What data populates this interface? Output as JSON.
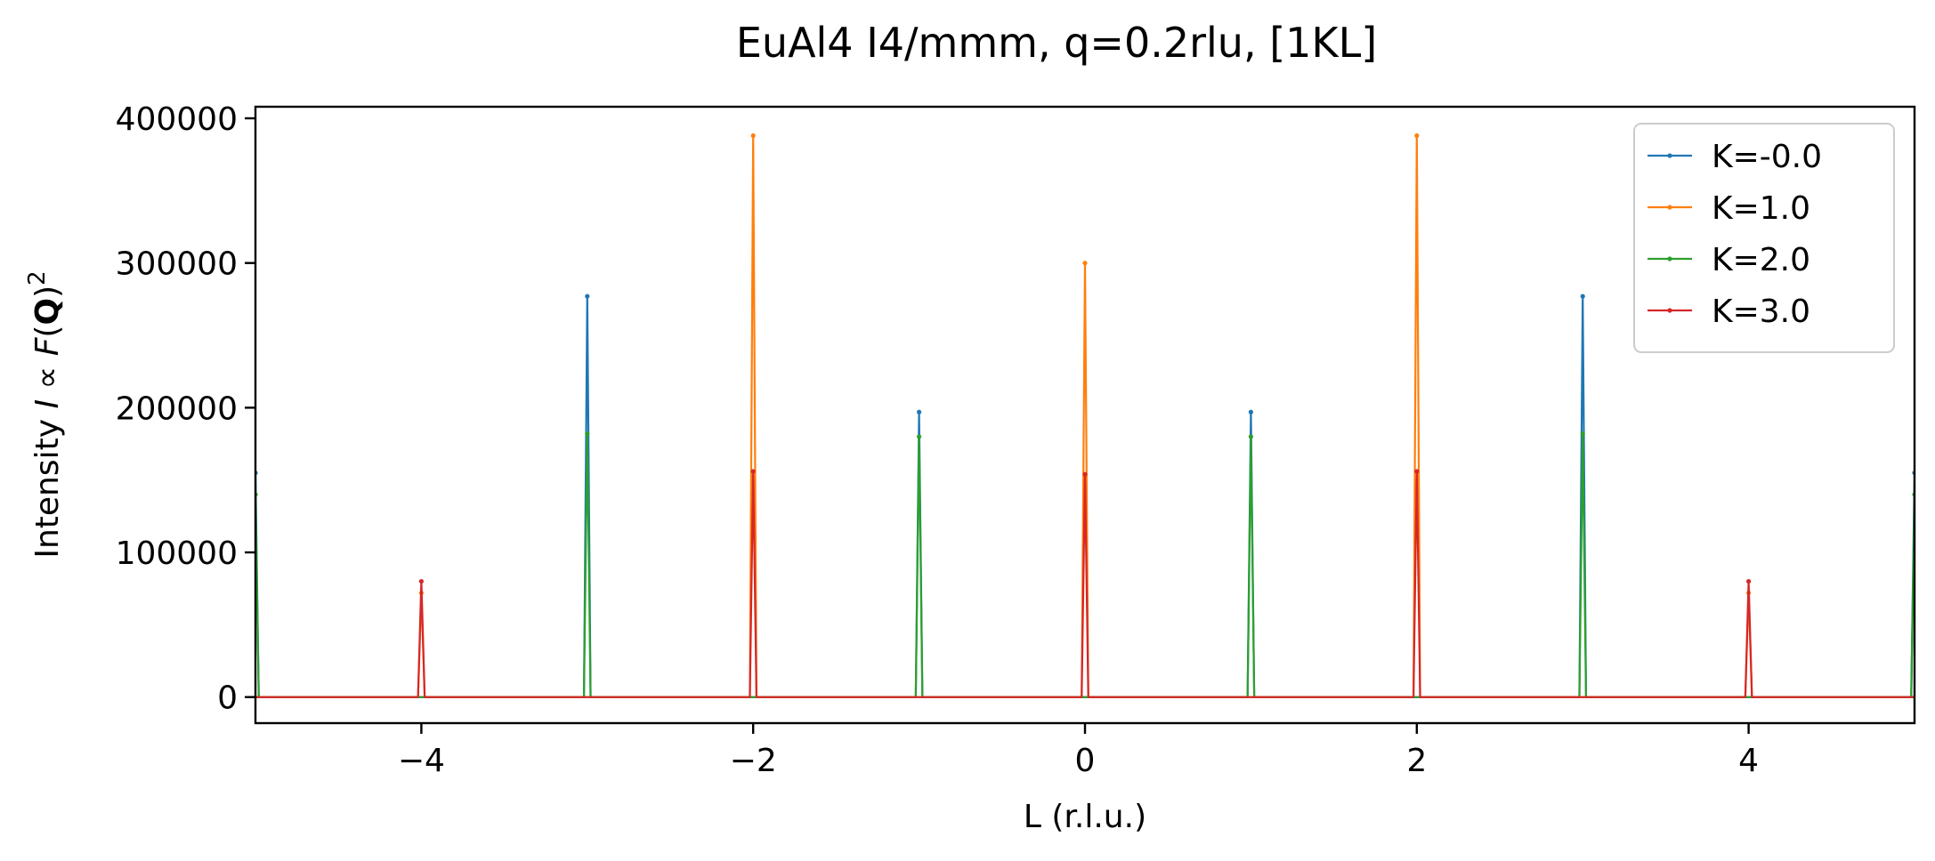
{
  "chart_data": {
    "type": "line",
    "title": "EuAl4 I4/mmm, q=0.2rlu, [1KL]",
    "xlabel": "L (r.l.u.)",
    "ylabel_prefix": "Intensity ",
    "ylabel_italic_I": "I",
    "ylabel_propto": " ∝ ",
    "ylabel_italic_F": "F",
    "ylabel_paren_open": "(",
    "ylabel_bold_Q": "Q",
    "ylabel_paren_close": ")",
    "ylabel_sup": "2",
    "xlim": [
      -5,
      5
    ],
    "ylim": [
      -18000,
      408000
    ],
    "x_ticks": [
      -4,
      -2,
      0,
      2,
      4
    ],
    "x_tick_labels": [
      "−4",
      "−2",
      "0",
      "2",
      "4"
    ],
    "y_ticks": [
      0,
      100000,
      200000,
      300000,
      400000
    ],
    "y_tick_labels": [
      "0",
      "100000",
      "200000",
      "300000",
      "400000"
    ],
    "grid": false,
    "legend_position": "top-right",
    "peak_halfwidth": 0.02,
    "series": [
      {
        "name": "K=-0.0",
        "color": "#1f77b4",
        "peaks": [
          {
            "x": -5,
            "y": 155000
          },
          {
            "x": -3,
            "y": 277000
          },
          {
            "x": -1,
            "y": 197000
          },
          {
            "x": 1,
            "y": 197000
          },
          {
            "x": 3,
            "y": 277000
          },
          {
            "x": 5,
            "y": 155000
          }
        ]
      },
      {
        "name": "K=1.0",
        "color": "#ff7f0e",
        "peaks": [
          {
            "x": -4,
            "y": 72000
          },
          {
            "x": -2,
            "y": 388000
          },
          {
            "x": 0,
            "y": 300000
          },
          {
            "x": 2,
            "y": 388000
          },
          {
            "x": 4,
            "y": 72000
          }
        ]
      },
      {
        "name": "K=2.0",
        "color": "#2ca02c",
        "peaks": [
          {
            "x": -5,
            "y": 140000
          },
          {
            "x": -3,
            "y": 182000
          },
          {
            "x": -1,
            "y": 180000
          },
          {
            "x": 1,
            "y": 180000
          },
          {
            "x": 3,
            "y": 182000
          },
          {
            "x": 5,
            "y": 140000
          }
        ]
      },
      {
        "name": "K=3.0",
        "color": "#d62728",
        "peaks": [
          {
            "x": -4,
            "y": 80000
          },
          {
            "x": -2,
            "y": 156000
          },
          {
            "x": 0,
            "y": 154000
          },
          {
            "x": 2,
            "y": 156000
          },
          {
            "x": 4,
            "y": 80000
          }
        ]
      }
    ]
  }
}
